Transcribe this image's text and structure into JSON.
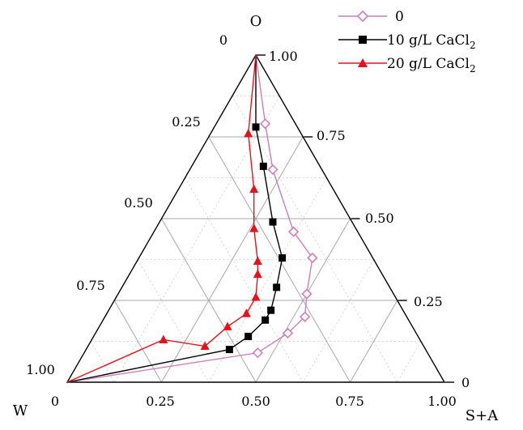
{
  "chart_data": {
    "type": "ternary",
    "vertices": {
      "top": "O",
      "left": "W",
      "right": "S+A"
    },
    "ticks": {
      "oil_axis": [
        "0",
        "0.25",
        "0.50",
        "0.75",
        "1.00"
      ],
      "water_axis": [
        "0",
        "0.25",
        "0.50",
        "0.75",
        "1.00"
      ],
      "surfactant_axis": [
        "0",
        "0.25",
        "0.50",
        "0.75",
        "1.00"
      ]
    },
    "grid": true,
    "legend_position": "top-right",
    "series": [
      {
        "name": "0",
        "marker": "diamond-open",
        "color": "#d17fb3",
        "points": [
          {
            "O": 1.0,
            "W": 0.0,
            "SA": 0.0
          },
          {
            "O": 0.79,
            "W": 0.08,
            "SA": 0.13
          },
          {
            "O": 0.65,
            "W": 0.13,
            "SA": 0.22
          },
          {
            "O": 0.46,
            "W": 0.17,
            "SA": 0.37
          },
          {
            "O": 0.38,
            "W": 0.16,
            "SA": 0.46
          },
          {
            "O": 0.27,
            "W": 0.23,
            "SA": 0.5
          },
          {
            "O": 0.2,
            "W": 0.27,
            "SA": 0.53
          },
          {
            "O": 0.15,
            "W": 0.34,
            "SA": 0.51
          },
          {
            "O": 0.09,
            "W": 0.45,
            "SA": 0.46
          },
          {
            "O": 0.0,
            "W": 1.0,
            "SA": 0.0
          }
        ]
      },
      {
        "name": "10 g/L CaCl",
        "subscript": "2",
        "marker": "square-filled",
        "color": "#000000",
        "points": [
          {
            "O": 1.0,
            "W": 0.0,
            "SA": 0.0
          },
          {
            "O": 0.78,
            "W": 0.11,
            "SA": 0.11
          },
          {
            "O": 0.66,
            "W": 0.15,
            "SA": 0.19
          },
          {
            "O": 0.49,
            "W": 0.21,
            "SA": 0.3
          },
          {
            "O": 0.38,
            "W": 0.24,
            "SA": 0.38
          },
          {
            "O": 0.29,
            "W": 0.3,
            "SA": 0.41
          },
          {
            "O": 0.22,
            "W": 0.35,
            "SA": 0.43
          },
          {
            "O": 0.19,
            "W": 0.38,
            "SA": 0.43
          },
          {
            "O": 0.14,
            "W": 0.45,
            "SA": 0.41
          },
          {
            "O": 0.1,
            "W": 0.52,
            "SA": 0.38
          },
          {
            "O": 0.0,
            "W": 1.0,
            "SA": 0.0
          }
        ]
      },
      {
        "name": "20 g/L CaCl",
        "subscript": "2",
        "marker": "triangle-filled",
        "color": "#e8101a",
        "points": [
          {
            "O": 1.0,
            "W": 0.0,
            "SA": 0.0
          },
          {
            "O": 0.76,
            "W": 0.14,
            "SA": 0.1
          },
          {
            "O": 0.59,
            "W": 0.21,
            "SA": 0.2
          },
          {
            "O": 0.47,
            "W": 0.27,
            "SA": 0.26
          },
          {
            "O": 0.37,
            "W": 0.31,
            "SA": 0.32
          },
          {
            "O": 0.33,
            "W": 0.33,
            "SA": 0.34
          },
          {
            "O": 0.26,
            "W": 0.37,
            "SA": 0.37
          },
          {
            "O": 0.21,
            "W": 0.42,
            "SA": 0.37
          },
          {
            "O": 0.17,
            "W": 0.49,
            "SA": 0.34
          },
          {
            "O": 0.11,
            "W": 0.58,
            "SA": 0.31
          },
          {
            "O": 0.13,
            "W": 0.68,
            "SA": 0.19
          },
          {
            "O": 0.0,
            "W": 1.0,
            "SA": 0.0
          }
        ]
      }
    ]
  }
}
